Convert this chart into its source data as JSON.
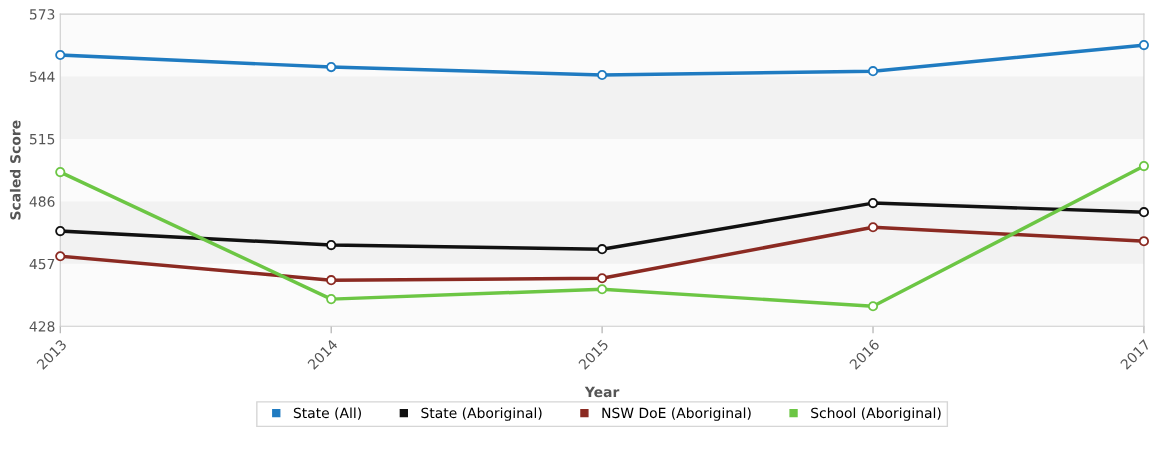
{
  "chart_data": {
    "type": "line",
    "xlabel": "Year",
    "ylabel": "Scaled Score",
    "x": [
      2013,
      2014,
      2015,
      2016,
      2017
    ],
    "series": [
      {
        "name": "State (All)",
        "color": "#1f7bc1",
        "values": [
          554,
          548.4,
          544.7,
          546.5,
          558.6
        ]
      },
      {
        "name": "State (Aboriginal)",
        "color": "#111111",
        "values": [
          472.2,
          465.7,
          463.8,
          485.2,
          481
        ]
      },
      {
        "name": "NSW DoE (Aboriginal)",
        "color": "#8b2a22",
        "values": [
          460.5,
          449.4,
          450.3,
          474,
          467.5
        ]
      },
      {
        "name": "School (Aboriginal)",
        "color": "#6cc644",
        "values": [
          499.6,
          440.6,
          445.2,
          437.3,
          502.4
        ]
      }
    ],
    "xlim": [
      2013,
      2017
    ],
    "xticks": [
      2013,
      2014,
      2015,
      2016,
      2017
    ],
    "ylim": [
      428,
      573
    ],
    "yticks": [
      428,
      457,
      486,
      515,
      544,
      573
    ],
    "bands": [
      {
        "axis": "y",
        "from": 515,
        "to": 544,
        "color": "#f2f2f2"
      },
      {
        "axis": "y",
        "from": 457,
        "to": 486,
        "color": "#f2f2f2"
      }
    ],
    "grid": false,
    "legend": "bottom",
    "marker": "circle",
    "line_style": "solid"
  }
}
